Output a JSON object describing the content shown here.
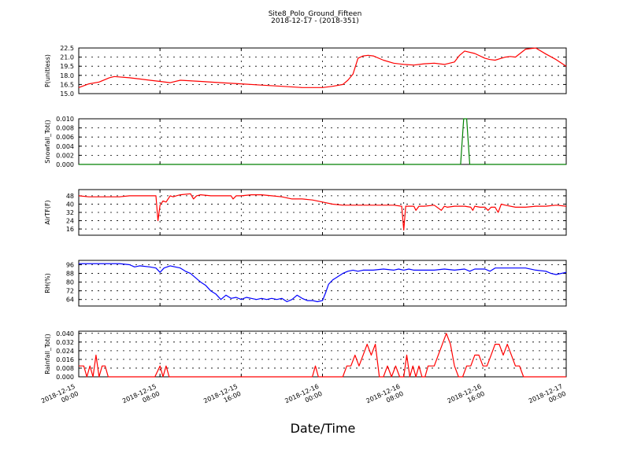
{
  "figure": {
    "title": "Site8_Polo_Ground_Fifteen",
    "subtitle": "2018-12-17 - (2018-351)",
    "xlabel": "Date/Time",
    "x_ticks": [
      "2018-12-15\n00:00",
      "2018-12-15\n08:00",
      "2018-12-15\n16:00",
      "2018-12-16\n00:00",
      "2018-12-16\n08:00",
      "2018-12-16\n16:00",
      "2018-12-17\n00:00"
    ]
  },
  "chart_data": [
    {
      "type": "line",
      "ylabel": "P(unitless)",
      "ylim": [
        15.0,
        22.5
      ],
      "yticks": [
        "15.0",
        "16.5",
        "18.0",
        "19.5",
        "21.0",
        "22.5"
      ],
      "grid": true,
      "color": "#ff0000",
      "x": [
        0,
        1,
        2,
        3,
        3.5,
        5,
        6,
        7,
        8,
        9,
        10,
        12,
        14,
        16,
        18,
        20,
        22,
        24,
        25,
        26,
        26.5,
        27,
        27.5,
        28,
        28.5,
        29,
        30,
        31,
        32,
        33,
        34,
        35,
        36,
        37,
        37.5,
        38,
        39,
        40,
        40.5,
        41,
        42,
        42.5,
        43,
        44,
        45,
        46,
        47,
        48
      ],
      "y": [
        16.0,
        16.6,
        16.9,
        17.6,
        17.8,
        17.6,
        17.4,
        17.2,
        17.0,
        16.8,
        17.2,
        17.0,
        16.8,
        16.6,
        16.4,
        16.2,
        16.0,
        16.0,
        16.2,
        16.5,
        17.2,
        18.2,
        20.8,
        21.2,
        21.3,
        21.2,
        20.5,
        20.0,
        19.8,
        19.7,
        19.9,
        20.0,
        19.8,
        20.2,
        21.3,
        22.0,
        21.6,
        20.8,
        20.6,
        20.5,
        21.0,
        21.1,
        21.0,
        22.3,
        22.5,
        21.5,
        20.6,
        19.5
      ]
    },
    {
      "type": "line",
      "ylabel": "Snowfall_Tot()",
      "ylim": [
        0.0,
        0.01
      ],
      "yticks": [
        "0.000",
        "0.002",
        "0.004",
        "0.006",
        "0.008",
        "0.010"
      ],
      "grid": true,
      "color": "#008000",
      "x": [
        0,
        37.6,
        37.9,
        38.2,
        38.5,
        48
      ],
      "y": [
        0,
        0,
        0.01,
        0.01,
        0,
        0
      ]
    },
    {
      "type": "line",
      "ylabel": "AirTF(F)",
      "ylim": [
        10,
        54
      ],
      "yticks": [
        "16",
        "24",
        "32",
        "40",
        "48"
      ],
      "grid": true,
      "color": "#ff0000",
      "x": [
        0,
        1,
        2,
        3,
        4,
        5,
        6,
        7,
        7.6,
        7.8,
        8,
        8.3,
        8.6,
        9,
        9.3,
        9.6,
        10,
        11,
        11.3,
        11.6,
        12,
        13,
        14,
        15,
        15.2,
        15.5,
        16,
        17,
        18,
        19,
        20,
        21,
        22,
        23,
        24,
        25,
        26,
        27,
        28,
        29,
        30,
        31,
        31.8,
        32,
        32.2,
        33,
        33.2,
        33.5,
        34,
        35,
        35.7,
        36,
        36.3,
        37,
        38,
        38.6,
        38.8,
        39,
        39.5,
        40,
        40.3,
        40.6,
        41,
        41.3,
        41.6,
        42,
        43,
        44,
        45,
        46,
        47,
        48
      ],
      "y": [
        48,
        47,
        47,
        47,
        47,
        48,
        48,
        48,
        48,
        24,
        39,
        43,
        42,
        48,
        47,
        48,
        49,
        50,
        45,
        48,
        49,
        48,
        48,
        48,
        45,
        48,
        48,
        49,
        49,
        48,
        47,
        45,
        45,
        44,
        42,
        40,
        39,
        39,
        39,
        39,
        39,
        39,
        38,
        15,
        38,
        38,
        34,
        38,
        38,
        39,
        34,
        38,
        37,
        38,
        38,
        37,
        34,
        38,
        37,
        37,
        34,
        37,
        37,
        32,
        40,
        39,
        37,
        37,
        38,
        38,
        39,
        38
      ]
    },
    {
      "type": "line",
      "ylabel": "RH(%)",
      "ylim": [
        58,
        100
      ],
      "yticks": [
        "64",
        "72",
        "80",
        "88",
        "96"
      ],
      "grid": true,
      "color": "#0000ff",
      "x": [
        0,
        1,
        2,
        3,
        4,
        5,
        5.5,
        6,
        7,
        7.6,
        8,
        8.4,
        9,
        9.5,
        10,
        10.5,
        11,
        11.5,
        12,
        12.5,
        13,
        13.5,
        14,
        14.5,
        15,
        15.5,
        16,
        16.5,
        17,
        17.5,
        18,
        18.5,
        19,
        19.5,
        20,
        20.5,
        21,
        21.5,
        22,
        22.5,
        23,
        23.5,
        24,
        24.3,
        24.6,
        25,
        26,
        26.5,
        27,
        27.5,
        28,
        29,
        30,
        31,
        31.5,
        32,
        32.5,
        33,
        34,
        35,
        36,
        37,
        38,
        38.5,
        39,
        40,
        40.5,
        41,
        42,
        43,
        44,
        45,
        46,
        46.5,
        47,
        48
      ],
      "y": [
        97,
        97,
        97,
        97,
        97,
        96,
        94,
        95,
        94,
        93,
        89,
        93,
        95,
        94,
        93,
        90,
        88,
        84,
        80,
        77,
        72,
        69,
        64,
        68,
        65,
        66,
        64,
        66,
        65,
        64,
        65,
        64,
        65,
        64,
        65,
        62,
        64,
        68,
        65,
        63,
        63,
        62,
        63,
        70,
        78,
        82,
        88,
        90,
        91,
        90,
        91,
        91,
        92,
        91,
        92,
        91,
        92,
        91,
        91,
        91,
        92,
        91,
        92,
        90,
        92,
        92,
        90,
        93,
        93,
        93,
        93,
        91,
        90,
        88,
        87,
        89
      ]
    },
    {
      "type": "line",
      "ylabel": "Rainfall_Tot()",
      "ylim": [
        0,
        0.042
      ],
      "yticks": [
        "0.000",
        "0.008",
        "0.016",
        "0.024",
        "0.032",
        "0.040"
      ],
      "grid": true,
      "color": "#ff0000",
      "x": [
        0,
        0.5,
        0.8,
        1.1,
        1.4,
        1.7,
        2,
        2.3,
        2.6,
        2.9,
        3.2,
        3.5,
        7.5,
        8,
        8.3,
        8.6,
        8.9,
        9.2,
        23,
        23.3,
        23.6,
        23.9,
        24.2,
        26,
        26.4,
        26.8,
        27.2,
        27.6,
        28,
        28.4,
        28.8,
        29.2,
        29.6,
        30,
        30.4,
        30.8,
        31.2,
        31.6,
        32,
        32.3,
        32.6,
        32.9,
        33.2,
        33.5,
        33.8,
        34.1,
        34.4,
        35,
        35.4,
        35.8,
        36.2,
        36.6,
        37,
        37.4,
        37.8,
        38.2,
        38.6,
        39,
        39.4,
        39.8,
        40.2,
        40.6,
        41,
        41.4,
        41.8,
        42.2,
        42.6,
        43,
        43.4,
        43.8,
        44.2,
        44.6,
        45,
        45.4,
        45.8,
        46.2,
        46.6,
        47,
        48
      ],
      "y": [
        0.01,
        0.01,
        0.0,
        0.01,
        0.0,
        0.02,
        0.0,
        0.01,
        0.01,
        0.0,
        0.0,
        0.0,
        0.0,
        0.01,
        0.0,
        0.01,
        0.0,
        0.0,
        0.0,
        0.01,
        0.0,
        0.0,
        0.0,
        0.0,
        0.01,
        0.01,
        0.02,
        0.01,
        0.02,
        0.03,
        0.02,
        0.03,
        0.0,
        0.0,
        0.01,
        0.0,
        0.01,
        0.0,
        0.0,
        0.02,
        0.0,
        0.01,
        0.0,
        0.01,
        0.0,
        0.0,
        0.01,
        0.01,
        0.02,
        0.03,
        0.04,
        0.03,
        0.01,
        0.0,
        0.0,
        0.01,
        0.01,
        0.02,
        0.02,
        0.01,
        0.01,
        0.02,
        0.03,
        0.03,
        0.02,
        0.03,
        0.02,
        0.01,
        0.01,
        0.0,
        0.0,
        0.0,
        0.0,
        0.0,
        0.0,
        0.0,
        0.0,
        0.0,
        0.0
      ]
    }
  ]
}
